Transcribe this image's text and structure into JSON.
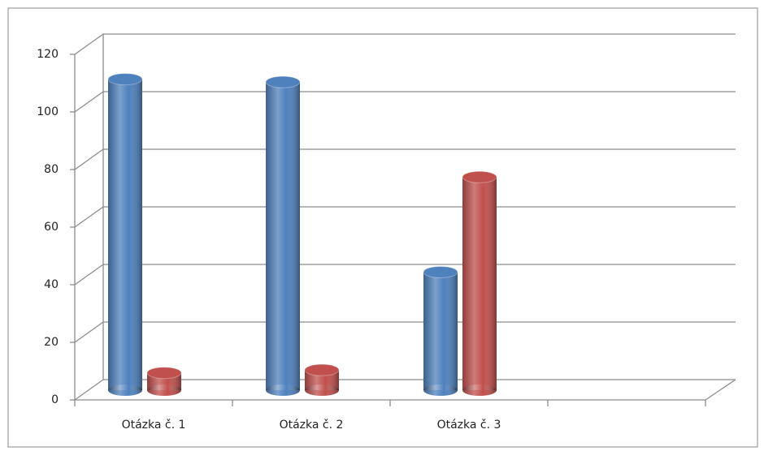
{
  "chart_data": {
    "type": "bar3d",
    "categories": [
      "Otázka č. 1",
      "Otázka č. 2",
      "Otázka č. 3",
      null
    ],
    "series": [
      {
        "color": "#4f81bd",
        "values": [
          108,
          107,
          41,
          null
        ]
      },
      {
        "color": "#c0504d",
        "values": [
          6,
          7,
          74,
          null
        ]
      }
    ],
    "ylim": [
      0,
      120
    ],
    "yticks": [
      0,
      20,
      40,
      60,
      80,
      100,
      120
    ],
    "grid": true
  }
}
